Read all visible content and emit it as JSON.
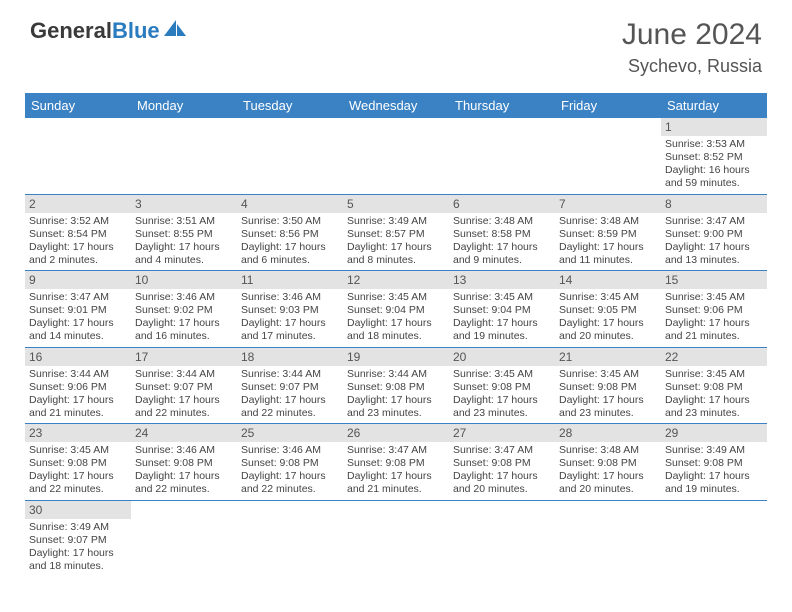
{
  "brand": {
    "part1": "General",
    "part2": "Blue"
  },
  "title": "June 2024",
  "location": "Sychevo, Russia",
  "colors": {
    "header_bg": "#3a82c4",
    "header_text": "#ffffff",
    "daynum_bg": "#e3e3e3",
    "cell_border": "#3a82c4",
    "text": "#444444",
    "title_color": "#555555"
  },
  "columns": [
    "Sunday",
    "Monday",
    "Tuesday",
    "Wednesday",
    "Thursday",
    "Friday",
    "Saturday"
  ],
  "weeks": [
    [
      null,
      null,
      null,
      null,
      null,
      null,
      {
        "n": "1",
        "sunrise": "3:53 AM",
        "sunset": "8:52 PM",
        "daylight": "16 hours and 59 minutes."
      }
    ],
    [
      {
        "n": "2",
        "sunrise": "3:52 AM",
        "sunset": "8:54 PM",
        "daylight": "17 hours and 2 minutes."
      },
      {
        "n": "3",
        "sunrise": "3:51 AM",
        "sunset": "8:55 PM",
        "daylight": "17 hours and 4 minutes."
      },
      {
        "n": "4",
        "sunrise": "3:50 AM",
        "sunset": "8:56 PM",
        "daylight": "17 hours and 6 minutes."
      },
      {
        "n": "5",
        "sunrise": "3:49 AM",
        "sunset": "8:57 PM",
        "daylight": "17 hours and 8 minutes."
      },
      {
        "n": "6",
        "sunrise": "3:48 AM",
        "sunset": "8:58 PM",
        "daylight": "17 hours and 9 minutes."
      },
      {
        "n": "7",
        "sunrise": "3:48 AM",
        "sunset": "8:59 PM",
        "daylight": "17 hours and 11 minutes."
      },
      {
        "n": "8",
        "sunrise": "3:47 AM",
        "sunset": "9:00 PM",
        "daylight": "17 hours and 13 minutes."
      }
    ],
    [
      {
        "n": "9",
        "sunrise": "3:47 AM",
        "sunset": "9:01 PM",
        "daylight": "17 hours and 14 minutes."
      },
      {
        "n": "10",
        "sunrise": "3:46 AM",
        "sunset": "9:02 PM",
        "daylight": "17 hours and 16 minutes."
      },
      {
        "n": "11",
        "sunrise": "3:46 AM",
        "sunset": "9:03 PM",
        "daylight": "17 hours and 17 minutes."
      },
      {
        "n": "12",
        "sunrise": "3:45 AM",
        "sunset": "9:04 PM",
        "daylight": "17 hours and 18 minutes."
      },
      {
        "n": "13",
        "sunrise": "3:45 AM",
        "sunset": "9:04 PM",
        "daylight": "17 hours and 19 minutes."
      },
      {
        "n": "14",
        "sunrise": "3:45 AM",
        "sunset": "9:05 PM",
        "daylight": "17 hours and 20 minutes."
      },
      {
        "n": "15",
        "sunrise": "3:45 AM",
        "sunset": "9:06 PM",
        "daylight": "17 hours and 21 minutes."
      }
    ],
    [
      {
        "n": "16",
        "sunrise": "3:44 AM",
        "sunset": "9:06 PM",
        "daylight": "17 hours and 21 minutes."
      },
      {
        "n": "17",
        "sunrise": "3:44 AM",
        "sunset": "9:07 PM",
        "daylight": "17 hours and 22 minutes."
      },
      {
        "n": "18",
        "sunrise": "3:44 AM",
        "sunset": "9:07 PM",
        "daylight": "17 hours and 22 minutes."
      },
      {
        "n": "19",
        "sunrise": "3:44 AM",
        "sunset": "9:08 PM",
        "daylight": "17 hours and 23 minutes."
      },
      {
        "n": "20",
        "sunrise": "3:45 AM",
        "sunset": "9:08 PM",
        "daylight": "17 hours and 23 minutes."
      },
      {
        "n": "21",
        "sunrise": "3:45 AM",
        "sunset": "9:08 PM",
        "daylight": "17 hours and 23 minutes."
      },
      {
        "n": "22",
        "sunrise": "3:45 AM",
        "sunset": "9:08 PM",
        "daylight": "17 hours and 23 minutes."
      }
    ],
    [
      {
        "n": "23",
        "sunrise": "3:45 AM",
        "sunset": "9:08 PM",
        "daylight": "17 hours and 22 minutes."
      },
      {
        "n": "24",
        "sunrise": "3:46 AM",
        "sunset": "9:08 PM",
        "daylight": "17 hours and 22 minutes."
      },
      {
        "n": "25",
        "sunrise": "3:46 AM",
        "sunset": "9:08 PM",
        "daylight": "17 hours and 22 minutes."
      },
      {
        "n": "26",
        "sunrise": "3:47 AM",
        "sunset": "9:08 PM",
        "daylight": "17 hours and 21 minutes."
      },
      {
        "n": "27",
        "sunrise": "3:47 AM",
        "sunset": "9:08 PM",
        "daylight": "17 hours and 20 minutes."
      },
      {
        "n": "28",
        "sunrise": "3:48 AM",
        "sunset": "9:08 PM",
        "daylight": "17 hours and 20 minutes."
      },
      {
        "n": "29",
        "sunrise": "3:49 AM",
        "sunset": "9:08 PM",
        "daylight": "17 hours and 19 minutes."
      }
    ],
    [
      {
        "n": "30",
        "sunrise": "3:49 AM",
        "sunset": "9:07 PM",
        "daylight": "17 hours and 18 minutes."
      },
      null,
      null,
      null,
      null,
      null,
      null
    ]
  ],
  "labels": {
    "sunrise": "Sunrise: ",
    "sunset": "Sunset: ",
    "daylight": "Daylight: "
  }
}
